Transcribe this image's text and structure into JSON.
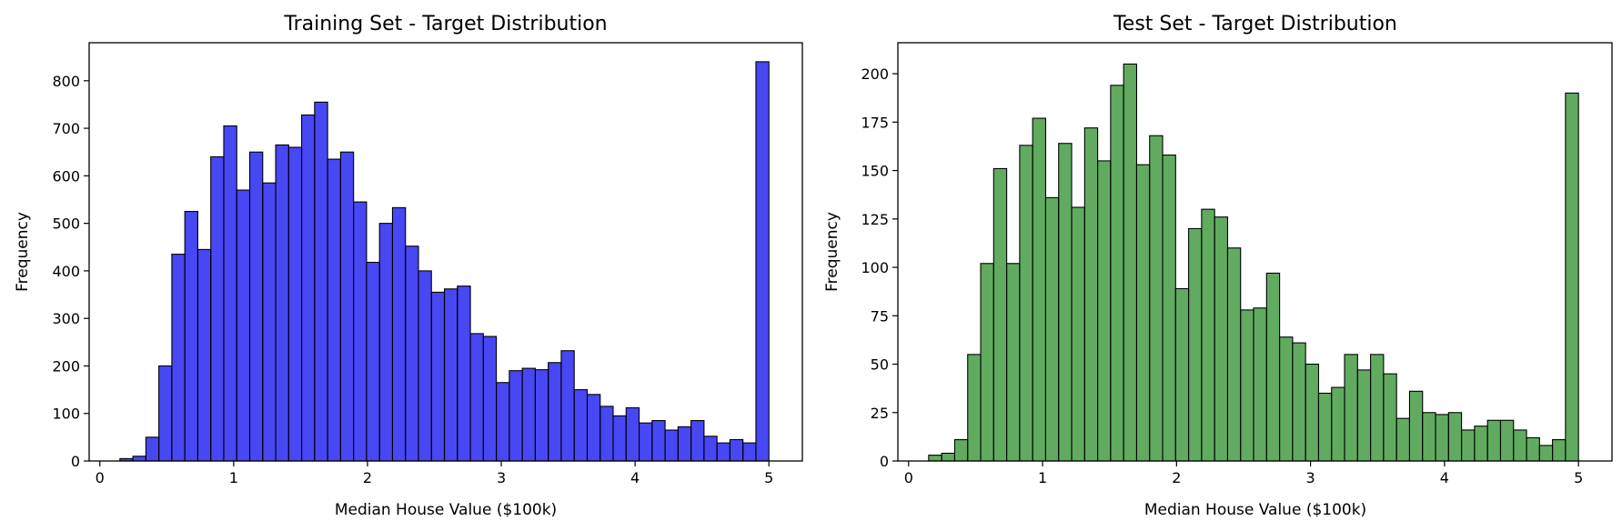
{
  "chart_data": [
    {
      "type": "bar",
      "title": "Training Set - Target Distribution",
      "xlabel": "Median House Value ($100k)",
      "ylabel": "Frequency",
      "xlim": [
        -0.08,
        5.25
      ],
      "ylim": [
        0,
        880
      ],
      "xticks": [
        0,
        1,
        2,
        3,
        4,
        5
      ],
      "yticks": [
        0,
        100,
        200,
        300,
        400,
        500,
        600,
        700,
        800
      ],
      "bin_start": 0.15,
      "bin_width": 0.097,
      "values": [
        5,
        10,
        50,
        200,
        435,
        525,
        445,
        640,
        705,
        570,
        650,
        585,
        665,
        660,
        728,
        755,
        635,
        650,
        545,
        418,
        500,
        533,
        452,
        400,
        355,
        362,
        368,
        268,
        262,
        165,
        190,
        195,
        192,
        207,
        232,
        150,
        140,
        115,
        95,
        112,
        80,
        85,
        65,
        72,
        85,
        52,
        38,
        45,
        38,
        840
      ],
      "color": "#0000ee",
      "edge_color": "#000000",
      "grid": false,
      "legend": "none"
    },
    {
      "type": "bar",
      "title": "Test Set - Target Distribution",
      "xlabel": "Median House Value ($100k)",
      "ylabel": "Frequency",
      "xlim": [
        -0.08,
        5.25
      ],
      "ylim": [
        0,
        216
      ],
      "xticks": [
        0,
        1,
        2,
        3,
        4,
        5
      ],
      "yticks": [
        0,
        25,
        50,
        75,
        100,
        125,
        150,
        175,
        200
      ],
      "bin_start": 0.15,
      "bin_width": 0.097,
      "values": [
        3,
        4,
        11,
        55,
        102,
        151,
        102,
        163,
        177,
        136,
        164,
        131,
        172,
        155,
        194,
        205,
        153,
        168,
        158,
        89,
        120,
        130,
        126,
        110,
        78,
        79,
        97,
        64,
        61,
        50,
        35,
        38,
        55,
        47,
        55,
        45,
        22,
        36,
        25,
        24,
        25,
        16,
        18,
        21,
        21,
        16,
        12,
        8,
        11,
        190
      ],
      "color": "#228b22",
      "edge_color": "#000000",
      "grid": false,
      "legend": "none"
    }
  ]
}
